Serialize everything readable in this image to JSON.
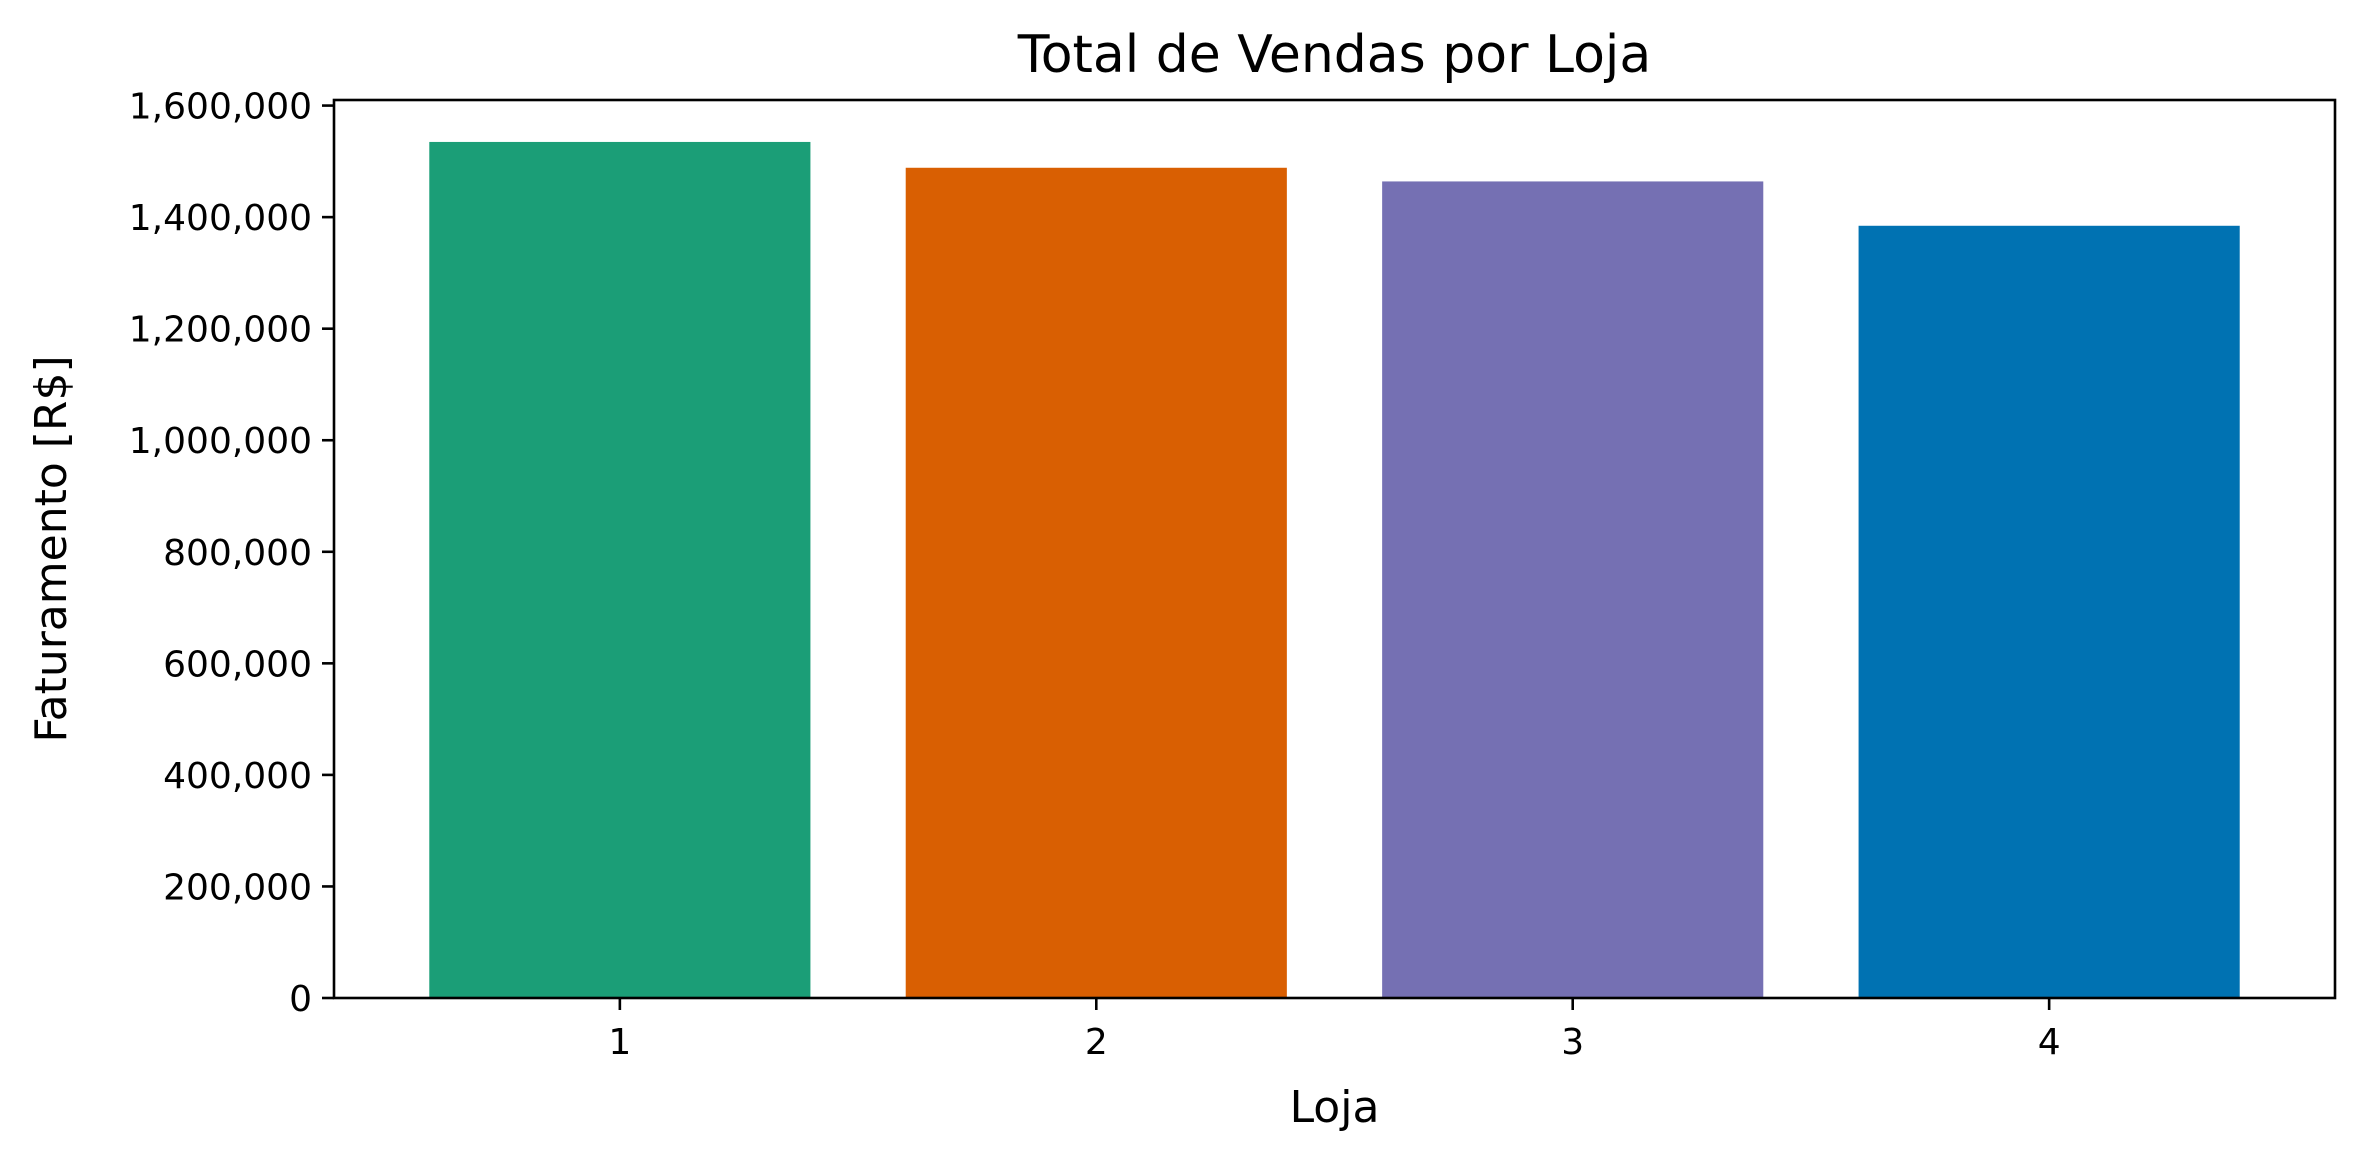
{
  "chart_data": {
    "type": "bar",
    "title": "Total de Vendas por Loja",
    "xlabel": "Loja",
    "ylabel": "Faturamento [R$]",
    "categories": [
      "1",
      "2",
      "3",
      "4"
    ],
    "values": [
      1534800,
      1488500,
      1464000,
      1384500
    ],
    "colors": [
      "#1b9e77",
      "#d95f02",
      "#7570b3",
      "#0072b2"
    ],
    "ylim": [
      0,
      1610000
    ],
    "yticks": [
      0,
      200000,
      400000,
      600000,
      800000,
      1000000,
      1200000,
      1400000,
      1600000
    ],
    "ytick_labels": [
      "0",
      "200,000",
      "400,000",
      "600,000",
      "800,000",
      "1,000,000",
      "1,200,000",
      "1,400,000",
      "1,600,000"
    ],
    "grid": false,
    "legend": "none"
  }
}
